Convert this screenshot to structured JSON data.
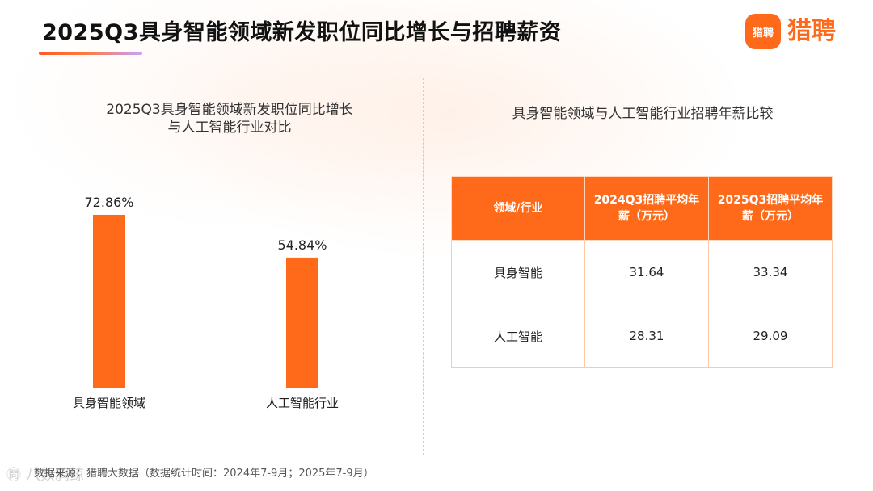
{
  "header": {
    "title": "2025Q3具身智能领域新发职位同比增长与招聘薪资",
    "logo_badge": "猎聘",
    "logo_text": "猎聘"
  },
  "colors": {
    "accent": "#ff6a1a",
    "bar": "#ff6a1a"
  },
  "chart_data": {
    "type": "bar",
    "title_lines": [
      "2025Q3具身智能领域新发职位同比增长",
      "与人工智能行业对比"
    ],
    "categories": [
      "具身智能领域",
      "人工智能行业"
    ],
    "values": [
      72.86,
      54.84
    ],
    "value_labels": [
      "72.86%",
      "54.84%"
    ],
    "ylim": [
      0,
      80
    ]
  },
  "table": {
    "title": "具身智能领域与人工智能行业招聘年薪比较",
    "headers": [
      "领域/行业",
      "2024Q3招聘平均年薪（万元）",
      "2025Q3招聘平均年薪（万元）"
    ],
    "rows": [
      [
        "具身智能",
        "31.64",
        "33.34"
      ],
      [
        "人工智能",
        "28.31",
        "29.09"
      ]
    ]
  },
  "footer": {
    "note": "数据来源：猎聘大数据（数据统计时间：2024年7-9月；2025年7-9月）",
    "watermark": "㉄ 八数鸦鲸"
  }
}
